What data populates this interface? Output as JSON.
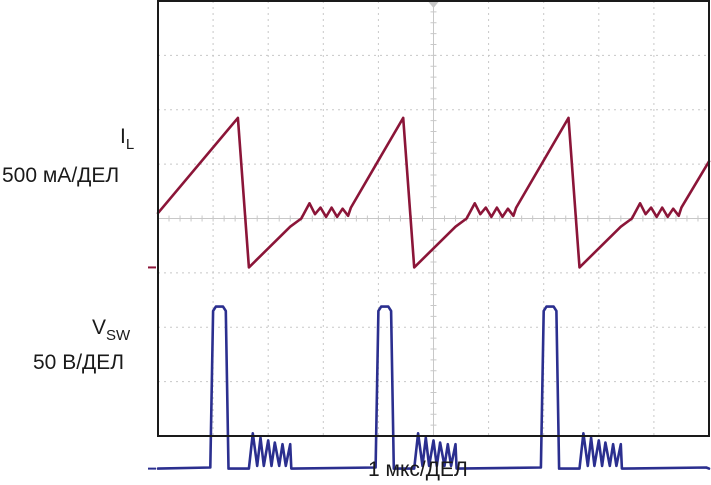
{
  "chart_data": {
    "type": "line",
    "xlabel": "1 мкс/ДЕЛ",
    "grid": true,
    "x_divisions": 10,
    "y_divisions": 8,
    "xlim": [
      0,
      10
    ],
    "series": [
      {
        "name": "IL",
        "label_main": "I",
        "label_sub": "L",
        "scale": "500 мА/ДЕЛ",
        "color": "#8b1538",
        "x": [
          0,
          1.45,
          1.65,
          2.4,
          2.6,
          2.75,
          2.85,
          2.95,
          3.05,
          3.15,
          3.25,
          3.35,
          3.45,
          3.5,
          4.45,
          4.65,
          5.4,
          5.6,
          5.75,
          5.85,
          5.95,
          6.05,
          6.15,
          6.25,
          6.35,
          6.45,
          6.5,
          7.45,
          7.65,
          8.4,
          8.6,
          8.75,
          8.85,
          8.95,
          9.05,
          9.15,
          9.25,
          9.35,
          9.45,
          9.5,
          10
        ],
        "y": [
          1.0,
          2.75,
          0.0,
          0.75,
          0.9,
          1.18,
          0.98,
          1.1,
          0.93,
          1.1,
          0.93,
          1.08,
          0.95,
          1.1,
          2.75,
          0.0,
          0.75,
          0.9,
          1.18,
          0.98,
          1.1,
          0.93,
          1.1,
          0.93,
          1.08,
          0.95,
          1.1,
          2.75,
          0.0,
          0.75,
          0.9,
          1.18,
          0.98,
          1.1,
          0.93,
          1.1,
          0.93,
          1.08,
          0.95,
          1.1,
          1.95
        ]
      },
      {
        "name": "VSW",
        "label_main": "V",
        "label_sub": "SW",
        "scale": "50 В/ДЕЛ",
        "color": "#2b2f8f",
        "x": [
          0,
          0.95,
          1.0,
          1.05,
          1.18,
          1.23,
          1.28,
          1.65,
          1.72,
          1.8,
          1.86,
          1.92,
          2.0,
          2.06,
          2.12,
          2.2,
          2.26,
          2.32,
          2.4,
          2.42,
          2.45,
          3.95,
          4.0,
          4.05,
          4.18,
          4.23,
          4.28,
          4.65,
          4.72,
          4.8,
          4.86,
          4.92,
          5.0,
          5.06,
          5.12,
          5.2,
          5.26,
          5.32,
          5.4,
          5.42,
          5.45,
          6.95,
          7.0,
          7.05,
          7.18,
          7.23,
          7.28,
          7.65,
          7.72,
          7.8,
          7.86,
          7.92,
          8.0,
          8.06,
          8.12,
          8.2,
          8.26,
          8.32,
          8.4,
          8.42,
          8.45,
          9.95,
          10.0
        ],
        "y": [
          0.0,
          0.02,
          2.9,
          2.98,
          2.98,
          2.9,
          0.0,
          0.0,
          0.65,
          0.05,
          0.57,
          0.05,
          0.52,
          0.05,
          0.48,
          0.05,
          0.45,
          0.05,
          0.45,
          0.0,
          0.0,
          0.02,
          2.9,
          2.98,
          2.98,
          2.9,
          0.0,
          0.0,
          0.65,
          0.05,
          0.57,
          0.05,
          0.52,
          0.05,
          0.48,
          0.05,
          0.45,
          0.05,
          0.45,
          0.0,
          0.0,
          0.02,
          2.9,
          2.98,
          2.98,
          2.9,
          0.0,
          0.0,
          0.65,
          0.05,
          0.57,
          0.05,
          0.52,
          0.05,
          0.48,
          0.05,
          0.45,
          0.05,
          0.45,
          0.0,
          0.0,
          0.02,
          0.0
        ]
      }
    ]
  }
}
